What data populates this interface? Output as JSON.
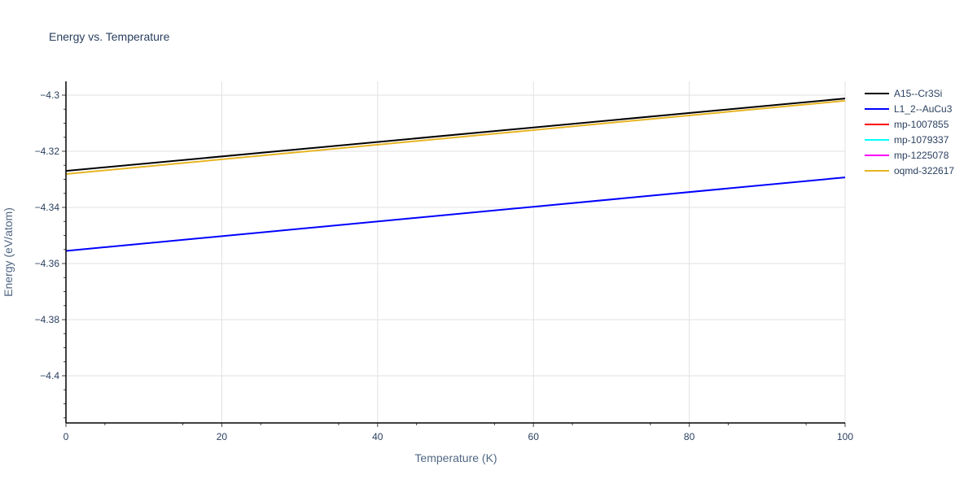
{
  "chart_data": {
    "type": "line",
    "title": "Energy vs. Temperature",
    "xlabel": "Temperature (K)",
    "ylabel": "Energy (eV/atom)",
    "xlim": [
      0,
      100
    ],
    "ylim": [
      -4.4165,
      -4.2975
    ],
    "x_ticks": [
      0,
      20,
      40,
      60,
      80,
      100
    ],
    "y_ticks": [
      -4.3,
      -4.32,
      -4.34,
      -4.36,
      -4.38,
      -4.4
    ],
    "y_tick_labels": [
      "−4.3",
      "−4.32",
      "−4.34",
      "−4.36",
      "−4.38",
      "−4.4"
    ],
    "grid": true,
    "legend_position": "right",
    "series": [
      {
        "name": "A15--Cr3Si",
        "color": "#000000",
        "x": [
          0,
          100
        ],
        "values": [
          -4.327,
          -4.3012
        ]
      },
      {
        "name": "L1_2--AuCu3",
        "color": "#0000ff",
        "x": [
          0,
          100
        ],
        "values": [
          -4.3555,
          -4.3293
        ]
      },
      {
        "name": "mp-1007855",
        "color": "#ff0000",
        "x": [],
        "values": []
      },
      {
        "name": "mp-1079337",
        "color": "#00ffff",
        "x": [],
        "values": []
      },
      {
        "name": "mp-1225078",
        "color": "#ff00ff",
        "x": [],
        "values": []
      },
      {
        "name": "oqmd-322617",
        "color": "#e6b422",
        "x": [
          0,
          100
        ],
        "values": [
          -4.3281,
          -4.302
        ]
      }
    ]
  }
}
